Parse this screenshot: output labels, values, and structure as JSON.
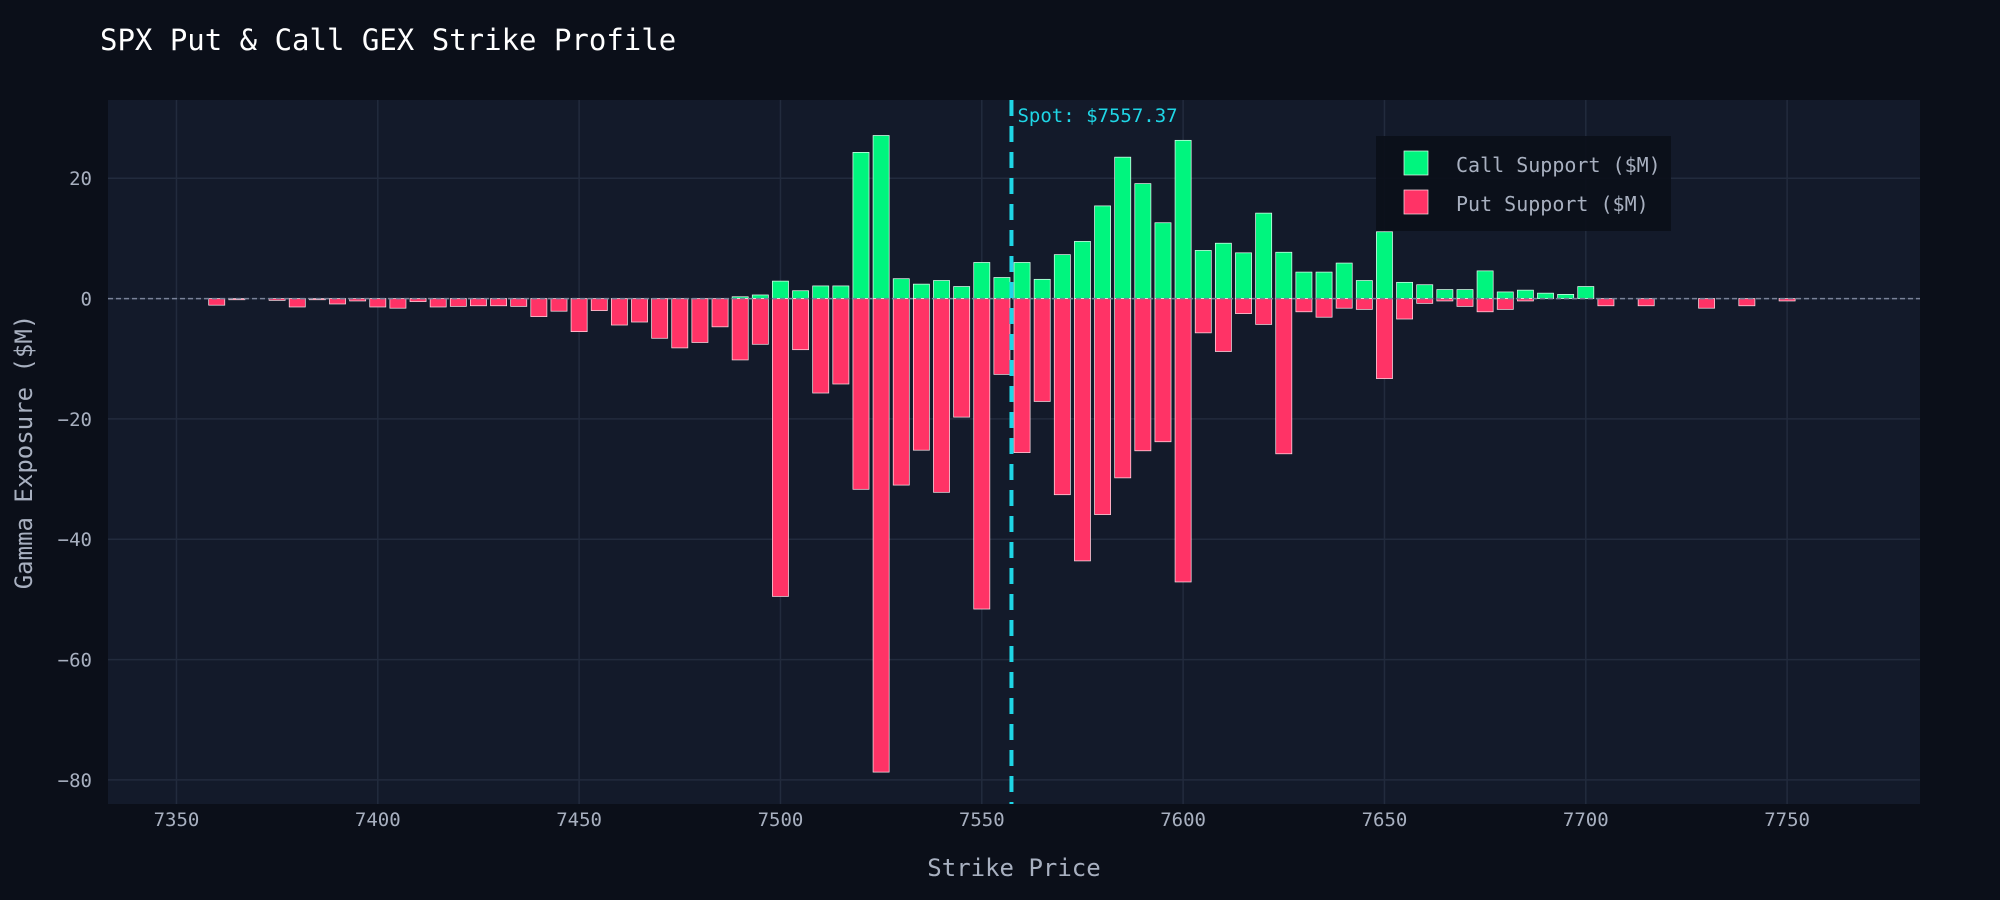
{
  "chart_data": {
    "type": "bar",
    "title": "SPX Put & Call GEX Strike Profile",
    "xlabel": "Strike Price",
    "ylabel": "Gamma Exposure ($M)",
    "xlim": [
      7333,
      7783
    ],
    "ylim": [
      -84,
      33
    ],
    "x_ticks": [
      7350,
      7400,
      7450,
      7500,
      7550,
      7600,
      7650,
      7700,
      7750
    ],
    "y_ticks": [
      20,
      0,
      -20,
      -40,
      -60,
      -80
    ],
    "grid": true,
    "legend_position": "top-right",
    "spot": {
      "value": 7557.37,
      "label": "Spot: $7557.37"
    },
    "colors": {
      "call": "#00f57e",
      "put": "#ff3366",
      "spot": "#1fd6e6",
      "plot_bg": "#131a2a",
      "page_bg": "#0b0f19",
      "grid": "#222b3d",
      "legend_bg": "#0b0f19"
    },
    "strikes": [
      7345,
      7350,
      7355,
      7360,
      7365,
      7370,
      7375,
      7380,
      7385,
      7390,
      7395,
      7400,
      7405,
      7410,
      7415,
      7420,
      7425,
      7430,
      7435,
      7440,
      7445,
      7450,
      7455,
      7460,
      7465,
      7470,
      7475,
      7480,
      7485,
      7490,
      7495,
      7500,
      7505,
      7510,
      7515,
      7520,
      7525,
      7530,
      7535,
      7540,
      7545,
      7550,
      7555,
      7560,
      7565,
      7570,
      7575,
      7580,
      7585,
      7590,
      7595,
      7600,
      7605,
      7610,
      7615,
      7620,
      7625,
      7630,
      7635,
      7640,
      7645,
      7650,
      7655,
      7660,
      7665,
      7670,
      7675,
      7680,
      7685,
      7690,
      7695,
      7700,
      7705,
      7710,
      7715,
      7720,
      7725,
      7730,
      7735,
      7740,
      7745,
      7750,
      7755,
      7760,
      7765,
      7770,
      7775,
      7780
    ],
    "series": [
      {
        "name": "Call Support ($M)",
        "values": [
          0,
          0,
          0,
          0,
          0,
          0,
          0,
          0,
          0,
          0,
          0,
          0,
          0,
          0,
          0,
          0,
          0,
          0,
          0,
          0,
          0,
          0,
          0,
          0,
          0,
          0,
          0,
          0,
          0,
          0.3,
          0.6,
          2.9,
          1.3,
          2.1,
          2.1,
          24.3,
          27.1,
          3.3,
          2.4,
          3.0,
          2.0,
          6.0,
          3.5,
          6.0,
          3.2,
          7.3,
          9.5,
          15.4,
          23.5,
          19.1,
          12.6,
          26.3,
          8.0,
          9.2,
          7.6,
          14.2,
          7.7,
          4.4,
          4.4,
          5.9,
          3.0,
          11.1,
          2.7,
          2.3,
          1.5,
          1.5,
          4.6,
          1.1,
          1.4,
          0.9,
          0.7,
          2.0,
          0,
          0,
          0,
          0,
          0,
          0,
          0,
          0,
          0,
          0,
          0,
          0,
          0,
          0,
          0,
          0
        ]
      },
      {
        "name": "Put Support ($M)",
        "values": [
          0,
          0,
          0,
          -1.1,
          -0.2,
          0,
          -0.3,
          -1.4,
          -0.2,
          -0.9,
          -0.4,
          -1.4,
          -1.6,
          -0.5,
          -1.4,
          -1.3,
          -1.2,
          -1.2,
          -1.3,
          -3.0,
          -2.1,
          -5.5,
          -2.0,
          -4.4,
          -3.9,
          -6.6,
          -8.2,
          -7.3,
          -4.7,
          -10.2,
          -7.6,
          -49.5,
          -8.5,
          -15.7,
          -14.2,
          -31.7,
          -78.7,
          -31.0,
          -25.2,
          -32.2,
          -19.7,
          -51.6,
          -12.6,
          -25.6,
          -17.1,
          -32.6,
          -43.6,
          -35.9,
          -29.8,
          -25.3,
          -23.8,
          -47.1,
          -5.7,
          -8.8,
          -2.5,
          -4.3,
          -25.8,
          -2.2,
          -3.1,
          -1.6,
          -1.8,
          -13.3,
          -3.4,
          -0.8,
          -0.4,
          -1.3,
          -2.2,
          -1.8,
          -0.4,
          0,
          0,
          0,
          -1.2,
          0,
          -1.2,
          0,
          0,
          -1.6,
          0,
          -1.2,
          0,
          -0.4,
          0,
          0,
          0,
          0,
          0,
          0
        ]
      }
    ]
  }
}
